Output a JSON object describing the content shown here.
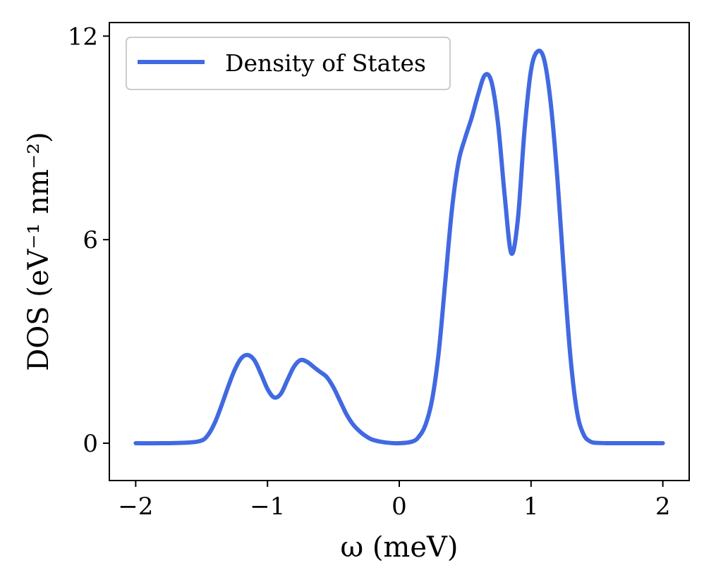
{
  "chart_data": {
    "type": "line",
    "xlabel": "ω (meV)",
    "ylabel": "DOS (eV⁻¹ nm⁻²)",
    "xlim": [
      -2.2,
      2.2
    ],
    "ylim": [
      -1.1,
      12.4
    ],
    "xticks": [
      {
        "value": -2,
        "label": "−2"
      },
      {
        "value": -1,
        "label": "−1"
      },
      {
        "value": 0,
        "label": "0"
      },
      {
        "value": 1,
        "label": "1"
      },
      {
        "value": 2,
        "label": "2"
      }
    ],
    "yticks": [
      {
        "value": 0,
        "label": "0"
      },
      {
        "value": 6,
        "label": "6"
      },
      {
        "value": 12,
        "label": "12"
      }
    ],
    "grid": false,
    "legend_position": "top-left",
    "series": [
      {
        "name": "Density of States",
        "color": "#4169E1",
        "x": [
          -2.0,
          -1.8,
          -1.6,
          -1.5,
          -1.45,
          -1.4,
          -1.35,
          -1.3,
          -1.25,
          -1.2,
          -1.15,
          -1.1,
          -1.05,
          -1.0,
          -0.95,
          -0.9,
          -0.85,
          -0.8,
          -0.75,
          -0.7,
          -0.65,
          -0.6,
          -0.55,
          -0.5,
          -0.45,
          -0.4,
          -0.35,
          -0.3,
          -0.25,
          -0.2,
          -0.1,
          0.0,
          0.1,
          0.15,
          0.2,
          0.25,
          0.3,
          0.35,
          0.4,
          0.45,
          0.5,
          0.55,
          0.6,
          0.65,
          0.7,
          0.75,
          0.8,
          0.85,
          0.9,
          0.95,
          1.0,
          1.05,
          1.1,
          1.15,
          1.2,
          1.25,
          1.3,
          1.35,
          1.4,
          1.45,
          1.5,
          1.6,
          1.8,
          2.0
        ],
        "values": [
          0.0,
          0.0,
          0.02,
          0.08,
          0.25,
          0.6,
          1.1,
          1.65,
          2.15,
          2.5,
          2.6,
          2.45,
          2.05,
          1.6,
          1.35,
          1.45,
          1.85,
          2.25,
          2.45,
          2.4,
          2.25,
          2.1,
          1.95,
          1.65,
          1.25,
          0.85,
          0.55,
          0.35,
          0.2,
          0.1,
          0.02,
          0.0,
          0.05,
          0.2,
          0.55,
          1.3,
          2.7,
          4.8,
          6.9,
          8.3,
          9.0,
          9.6,
          10.3,
          10.85,
          10.65,
          9.4,
          7.3,
          5.6,
          6.6,
          9.2,
          11.0,
          11.55,
          11.3,
          10.0,
          7.8,
          5.0,
          2.5,
          0.9,
          0.25,
          0.05,
          0.01,
          0.0,
          0.0,
          0.0
        ]
      }
    ]
  }
}
